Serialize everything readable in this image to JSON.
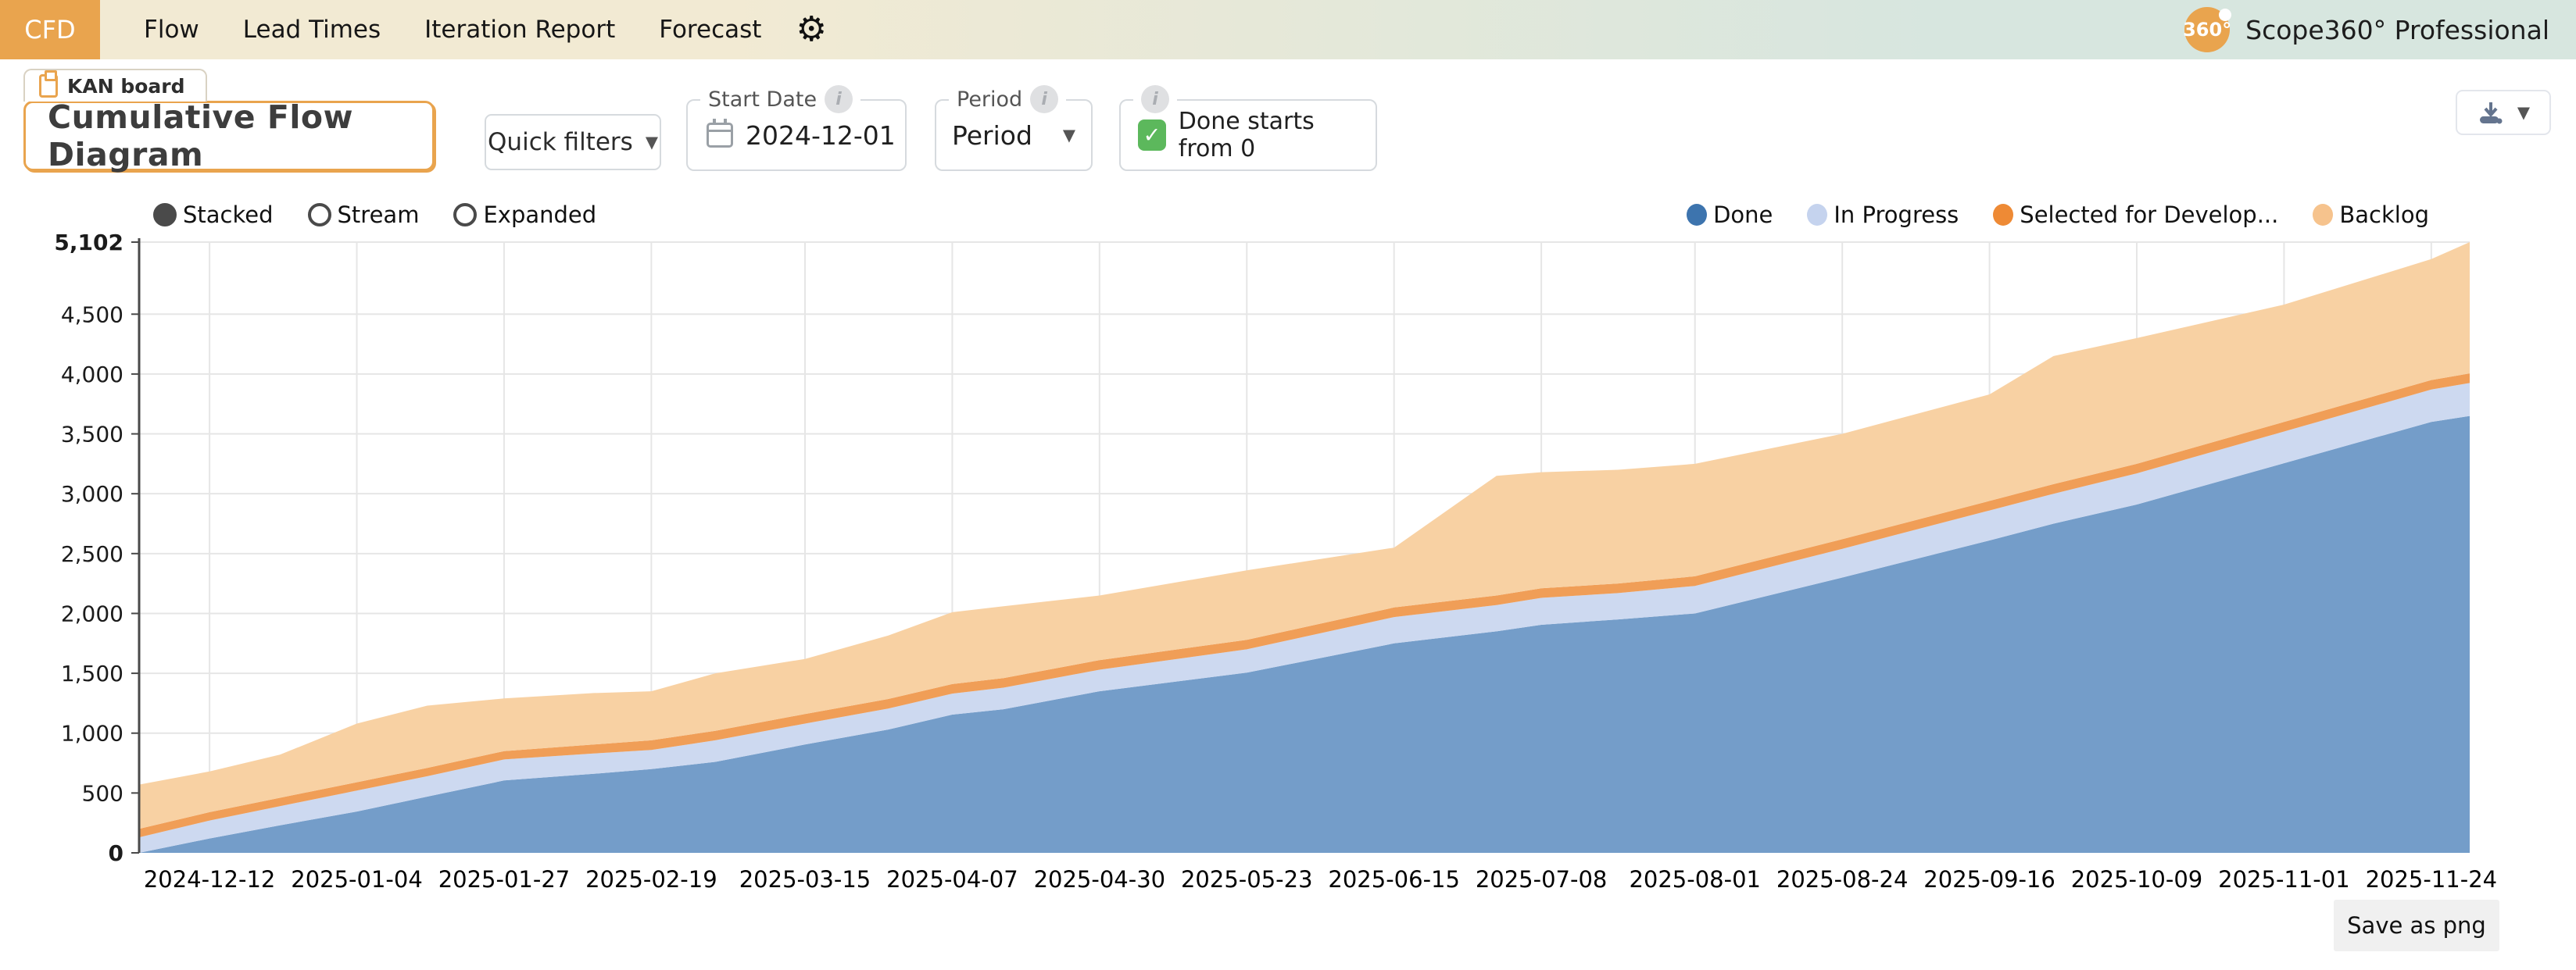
{
  "colors": {
    "accent_orange": "#E9A44E",
    "nav_gradient_left": "#F2EAD3",
    "nav_gradient_right": "#D7E6DF",
    "checkbox_green": "#5CB85C"
  },
  "nav": {
    "tabs": [
      {
        "label": "CFD",
        "active": true
      },
      {
        "label": "Flow",
        "active": false
      },
      {
        "label": "Lead Times",
        "active": false
      },
      {
        "label": "Iteration Report",
        "active": false
      },
      {
        "label": "Forecast",
        "active": false
      }
    ],
    "settings_icon": "⚙",
    "brand": {
      "logo_text": "360°",
      "name": "Scope360° Professional"
    }
  },
  "board_tab": {
    "label": "KAN board"
  },
  "page_title": "Cumulative Flow Diagram",
  "toolbar": {
    "quick_filters_label": "Quick filters",
    "dropdown_arrow": "▼",
    "start_date": {
      "label": "Start Date",
      "value": "2024-12-01"
    },
    "period": {
      "label": "Period",
      "value": "Period"
    },
    "done_starts": {
      "label": "Done starts from 0",
      "checked": true,
      "check_glyph": "✓"
    },
    "info_glyph": "i"
  },
  "view_modes": [
    {
      "label": "Stacked",
      "selected": true
    },
    {
      "label": "Stream",
      "selected": false
    },
    {
      "label": "Expanded",
      "selected": false
    }
  ],
  "export": {
    "save_as_png": "Save as png"
  },
  "chart_data": {
    "type": "area",
    "stacked": true,
    "grid": true,
    "legend_position": "top-right",
    "x_start": "2024-12-01",
    "x_end": "2025-11-30",
    "y_max": 5102,
    "y_ticks": [
      0,
      500,
      1000,
      1500,
      2000,
      2500,
      3000,
      3500,
      4000,
      4500
    ],
    "x_tick_labels": [
      "2024-12-12",
      "2025-01-04",
      "2025-01-27",
      "2025-02-19",
      "2025-03-15",
      "2025-04-07",
      "2025-04-30",
      "2025-05-23",
      "2025-06-15",
      "2025-07-08",
      "2025-08-01",
      "2025-08-24",
      "2025-09-16",
      "2025-10-09",
      "2025-11-01",
      "2025-11-24"
    ],
    "style": {
      "grid_color": "#E6E6E6",
      "axis_color": "#4A4A4A"
    },
    "series": [
      {
        "key": "done",
        "name": "Done",
        "fill": "#6F9AC7",
        "legend_color": "#3D74AE"
      },
      {
        "key": "in_progress",
        "name": "In Progress",
        "fill": "#CBD8F0",
        "legend_color": "#C5D3EE"
      },
      {
        "key": "selected_for_development",
        "name": "Selected for Develop...",
        "fill": "#F09B52",
        "legend_color": "#EE8A35"
      },
      {
        "key": "backlog",
        "name": "Backlog",
        "fill": "#F8D0A0",
        "legend_color": "#F6C38D"
      }
    ],
    "points": [
      {
        "date": "2024-12-01",
        "done": 0,
        "in_progress": 130,
        "selected_for_development": 70,
        "backlog": 370
      },
      {
        "date": "2024-12-12",
        "done": 120,
        "in_progress": 150,
        "selected_for_development": 70,
        "backlog": 340
      },
      {
        "date": "2024-12-23",
        "done": 230,
        "in_progress": 160,
        "selected_for_development": 70,
        "backlog": 360
      },
      {
        "date": "2025-01-04",
        "done": 345,
        "in_progress": 175,
        "selected_for_development": 70,
        "backlog": 490
      },
      {
        "date": "2025-01-15",
        "done": 470,
        "in_progress": 170,
        "selected_for_development": 70,
        "backlog": 520
      },
      {
        "date": "2025-01-27",
        "done": 605,
        "in_progress": 175,
        "selected_for_development": 70,
        "backlog": 440
      },
      {
        "date": "2025-02-10",
        "done": 660,
        "in_progress": 170,
        "selected_for_development": 75,
        "backlog": 430
      },
      {
        "date": "2025-02-19",
        "done": 700,
        "in_progress": 160,
        "selected_for_development": 80,
        "backlog": 410
      },
      {
        "date": "2025-03-01",
        "done": 760,
        "in_progress": 180,
        "selected_for_development": 80,
        "backlog": 480
      },
      {
        "date": "2025-03-15",
        "done": 905,
        "in_progress": 175,
        "selected_for_development": 80,
        "backlog": 460
      },
      {
        "date": "2025-03-28",
        "done": 1030,
        "in_progress": 175,
        "selected_for_development": 80,
        "backlog": 530
      },
      {
        "date": "2025-04-07",
        "done": 1155,
        "in_progress": 175,
        "selected_for_development": 80,
        "backlog": 600
      },
      {
        "date": "2025-04-15",
        "done": 1200,
        "in_progress": 180,
        "selected_for_development": 80,
        "backlog": 600
      },
      {
        "date": "2025-04-30",
        "done": 1350,
        "in_progress": 180,
        "selected_for_development": 80,
        "backlog": 540
      },
      {
        "date": "2025-05-23",
        "done": 1505,
        "in_progress": 195,
        "selected_for_development": 80,
        "backlog": 580
      },
      {
        "date": "2025-06-15",
        "done": 1750,
        "in_progress": 220,
        "selected_for_development": 80,
        "backlog": 500
      },
      {
        "date": "2025-07-01",
        "done": 1850,
        "in_progress": 220,
        "selected_for_development": 80,
        "backlog": 1000
      },
      {
        "date": "2025-07-08",
        "done": 1905,
        "in_progress": 225,
        "selected_for_development": 80,
        "backlog": 970
      },
      {
        "date": "2025-07-20",
        "done": 1950,
        "in_progress": 220,
        "selected_for_development": 80,
        "backlog": 950
      },
      {
        "date": "2025-08-01",
        "done": 2000,
        "in_progress": 230,
        "selected_for_development": 80,
        "backlog": 940
      },
      {
        "date": "2025-08-24",
        "done": 2300,
        "in_progress": 240,
        "selected_for_development": 80,
        "backlog": 880
      },
      {
        "date": "2025-09-16",
        "done": 2610,
        "in_progress": 250,
        "selected_for_development": 80,
        "backlog": 890
      },
      {
        "date": "2025-09-26",
        "done": 2750,
        "in_progress": 250,
        "selected_for_development": 80,
        "backlog": 1070
      },
      {
        "date": "2025-10-09",
        "done": 2910,
        "in_progress": 260,
        "selected_for_development": 80,
        "backlog": 1050
      },
      {
        "date": "2025-11-01",
        "done": 3255,
        "in_progress": 265,
        "selected_for_development": 80,
        "backlog": 980
      },
      {
        "date": "2025-11-24",
        "done": 3600,
        "in_progress": 270,
        "selected_for_development": 80,
        "backlog": 1010
      },
      {
        "date": "2025-11-30",
        "done": 3650,
        "in_progress": 275,
        "selected_for_development": 80,
        "backlog": 1097
      }
    ]
  }
}
